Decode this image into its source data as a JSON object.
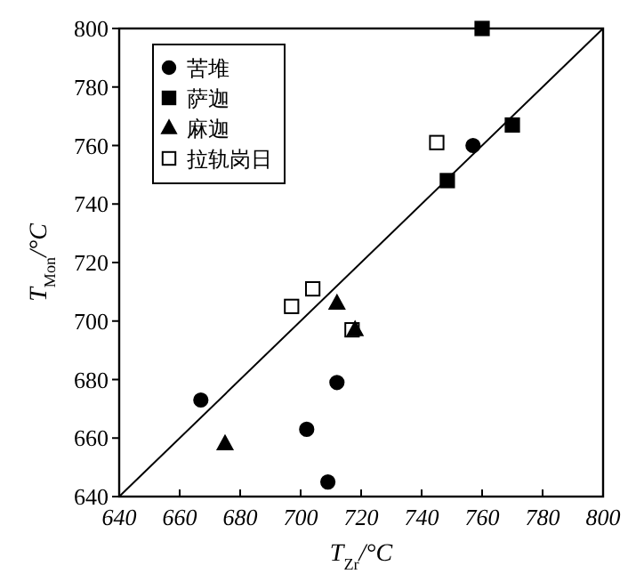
{
  "chart_data": {
    "type": "scatter",
    "xlabel": "T$_{Zr}$/°C",
    "ylabel": "T$_{Mon}$/°C",
    "xlim": [
      640,
      800
    ],
    "ylim": [
      640,
      800
    ],
    "xticks": [
      640,
      660,
      680,
      700,
      720,
      740,
      760,
      780,
      800
    ],
    "yticks": [
      640,
      660,
      680,
      700,
      720,
      740,
      760,
      780,
      800
    ],
    "grid": false,
    "legend": "top left",
    "series": [
      {
        "name": "苦堆",
        "color": "#000000",
        "marker": "circle",
        "x": [
          667,
          702,
          709,
          712,
          757
        ],
        "values": [
          673,
          663,
          645,
          679,
          760
        ]
      },
      {
        "name": "萨迦",
        "color": "#000000",
        "marker": "square",
        "x": [
          760,
          770,
          748.5
        ],
        "values": [
          800,
          767,
          748
        ]
      },
      {
        "name": "麻迦",
        "color": "#000000",
        "marker": "triangle",
        "x": [
          712,
          718,
          675
        ],
        "values": [
          706,
          697,
          658
        ]
      },
      {
        "name": "拉轨岗日",
        "color": "#ffffff",
        "marker": "square",
        "x": [
          745,
          704,
          697,
          717
        ],
        "values": [
          761,
          711,
          705,
          697
        ]
      },
      {
        "type": "line",
        "color": "#000000",
        "marker": "none",
        "x": [
          640,
          800
        ],
        "values": [
          640,
          800
        ]
      }
    ]
  }
}
